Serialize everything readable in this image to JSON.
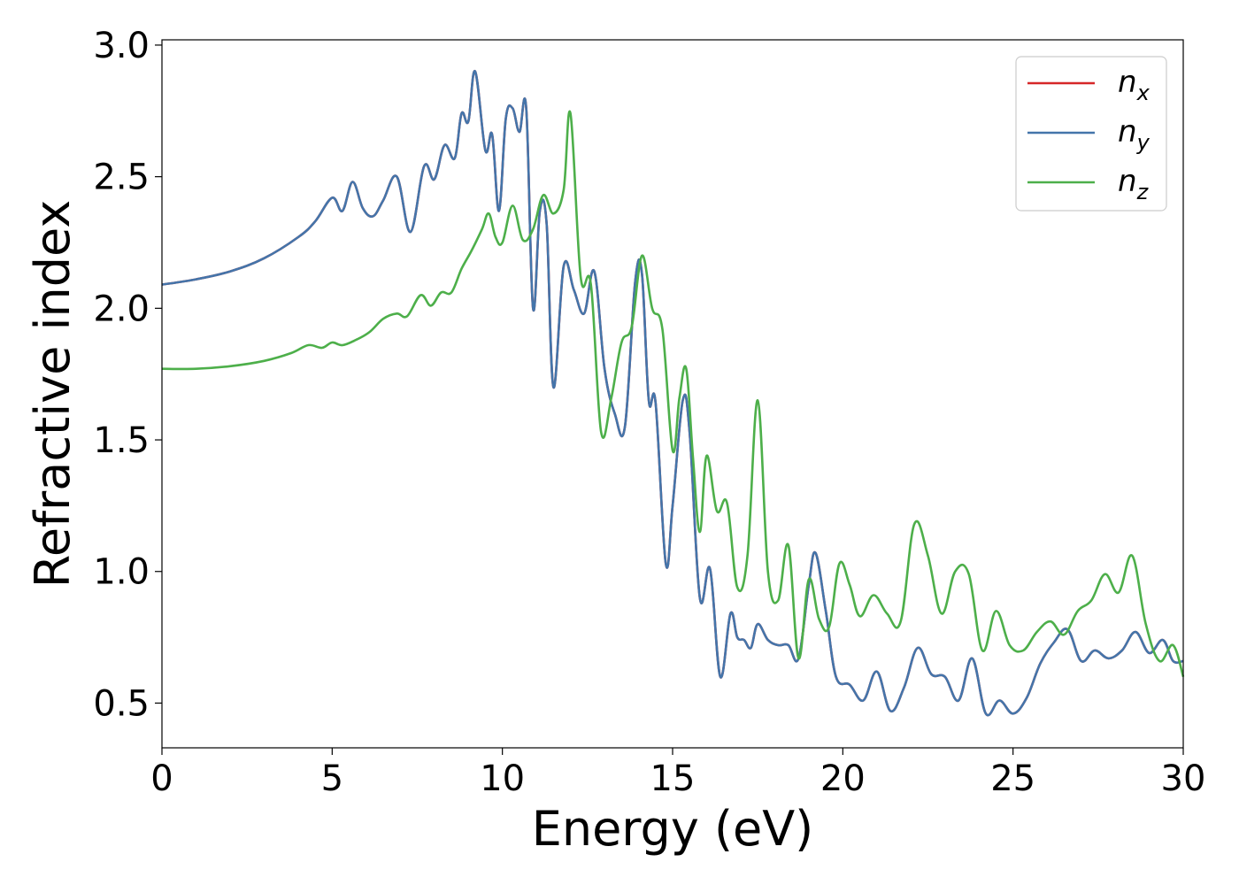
{
  "chart_data": {
    "type": "line",
    "xlabel": "Energy (eV)",
    "ylabel": "Refractive index",
    "xlim": [
      0,
      30
    ],
    "ylim": [
      0.33,
      3.02
    ],
    "xticks": [
      0,
      5,
      10,
      15,
      20,
      25,
      30
    ],
    "xtick_labels": [
      "0",
      "5",
      "10",
      "15",
      "20",
      "25",
      "30"
    ],
    "yticks": [
      0.5,
      1.0,
      1.5,
      2.0,
      2.5,
      3.0
    ],
    "ytick_labels": [
      "0.5",
      "1.0",
      "1.5",
      "2.0",
      "2.5",
      "3.0"
    ],
    "grid": false,
    "legend": "top-right",
    "series": [
      {
        "name": "n",
        "subscript": "x",
        "color": "#d62728",
        "x": [
          0,
          1,
          2,
          3,
          4,
          4.5,
          5,
          5.3,
          5.6,
          5.9,
          6.2,
          6.5,
          6.9,
          7.3,
          7.7,
          8.0,
          8.3,
          8.6,
          8.8,
          9.0,
          9.2,
          9.5,
          9.7,
          9.9,
          10.1,
          10.3,
          10.5,
          10.7,
          10.9,
          11.1,
          11.3,
          11.5,
          11.8,
          12.1,
          12.4,
          12.7,
          13.0,
          13.3,
          13.6,
          13.9,
          14.1,
          14.3,
          14.5,
          14.8,
          15.0,
          15.3,
          15.5,
          15.8,
          16.1,
          16.4,
          16.7,
          16.9,
          17.1,
          17.3,
          17.5,
          17.8,
          18.1,
          18.4,
          18.7,
          19.0,
          19.2,
          19.5,
          19.8,
          20.2,
          20.6,
          21.0,
          21.4,
          21.8,
          22.2,
          22.6,
          23.0,
          23.4,
          23.8,
          24.2,
          24.6,
          25.0,
          25.4,
          25.8,
          26.2,
          26.6,
          27.0,
          27.4,
          27.8,
          28.2,
          28.6,
          29.0,
          29.4,
          29.7,
          30.0
        ],
        "values": [
          2.09,
          2.11,
          2.14,
          2.19,
          2.27,
          2.33,
          2.42,
          2.37,
          2.48,
          2.38,
          2.35,
          2.41,
          2.5,
          2.29,
          2.54,
          2.49,
          2.62,
          2.57,
          2.74,
          2.71,
          2.9,
          2.6,
          2.66,
          2.37,
          2.72,
          2.76,
          2.67,
          2.76,
          2.0,
          2.37,
          2.32,
          1.7,
          2.16,
          2.07,
          1.98,
          2.14,
          1.77,
          1.6,
          1.55,
          2.1,
          2.13,
          1.65,
          1.64,
          1.03,
          1.25,
          1.65,
          1.53,
          0.9,
          1.01,
          0.6,
          0.84,
          0.75,
          0.74,
          0.71,
          0.8,
          0.74,
          0.72,
          0.72,
          0.67,
          0.95,
          1.07,
          0.85,
          0.6,
          0.57,
          0.51,
          0.62,
          0.47,
          0.56,
          0.71,
          0.61,
          0.6,
          0.51,
          0.67,
          0.46,
          0.51,
          0.46,
          0.52,
          0.65,
          0.73,
          0.78,
          0.66,
          0.7,
          0.67,
          0.7,
          0.77,
          0.69,
          0.74,
          0.66,
          0.66
        ]
      },
      {
        "name": "n",
        "subscript": "y",
        "color": "#4475aa",
        "x": [
          0,
          1,
          2,
          3,
          4,
          4.5,
          5,
          5.3,
          5.6,
          5.9,
          6.2,
          6.5,
          6.9,
          7.3,
          7.7,
          8.0,
          8.3,
          8.6,
          8.8,
          9.0,
          9.2,
          9.5,
          9.7,
          9.9,
          10.1,
          10.3,
          10.5,
          10.7,
          10.9,
          11.1,
          11.3,
          11.5,
          11.8,
          12.1,
          12.4,
          12.7,
          13.0,
          13.3,
          13.6,
          13.9,
          14.1,
          14.3,
          14.5,
          14.8,
          15.0,
          15.3,
          15.5,
          15.8,
          16.1,
          16.4,
          16.7,
          16.9,
          17.1,
          17.3,
          17.5,
          17.8,
          18.1,
          18.4,
          18.7,
          19.0,
          19.2,
          19.5,
          19.8,
          20.2,
          20.6,
          21.0,
          21.4,
          21.8,
          22.2,
          22.6,
          23.0,
          23.4,
          23.8,
          24.2,
          24.6,
          25.0,
          25.4,
          25.8,
          26.2,
          26.6,
          27.0,
          27.4,
          27.8,
          28.2,
          28.6,
          29.0,
          29.4,
          29.7,
          30.0
        ],
        "values": [
          2.09,
          2.11,
          2.14,
          2.19,
          2.27,
          2.33,
          2.42,
          2.37,
          2.48,
          2.38,
          2.35,
          2.41,
          2.5,
          2.29,
          2.54,
          2.49,
          2.62,
          2.57,
          2.74,
          2.71,
          2.9,
          2.6,
          2.66,
          2.37,
          2.72,
          2.76,
          2.67,
          2.76,
          2.0,
          2.37,
          2.32,
          1.7,
          2.16,
          2.07,
          1.98,
          2.14,
          1.77,
          1.6,
          1.55,
          2.1,
          2.13,
          1.65,
          1.64,
          1.03,
          1.25,
          1.65,
          1.53,
          0.9,
          1.01,
          0.6,
          0.84,
          0.75,
          0.74,
          0.71,
          0.8,
          0.74,
          0.72,
          0.72,
          0.67,
          0.95,
          1.07,
          0.85,
          0.6,
          0.57,
          0.51,
          0.62,
          0.47,
          0.56,
          0.71,
          0.61,
          0.6,
          0.51,
          0.67,
          0.46,
          0.51,
          0.46,
          0.52,
          0.65,
          0.73,
          0.78,
          0.66,
          0.7,
          0.67,
          0.7,
          0.77,
          0.69,
          0.74,
          0.66,
          0.66
        ]
      },
      {
        "name": "n",
        "subscript": "z",
        "color": "#4daf4a",
        "x": [
          0,
          1,
          2,
          3,
          3.8,
          4.3,
          4.7,
          5.0,
          5.3,
          5.7,
          6.1,
          6.5,
          6.9,
          7.2,
          7.6,
          7.9,
          8.2,
          8.5,
          8.8,
          9.1,
          9.4,
          9.6,
          9.8,
          10.0,
          10.3,
          10.6,
          10.9,
          11.2,
          11.5,
          11.8,
          12.0,
          12.3,
          12.6,
          12.9,
          13.2,
          13.5,
          13.8,
          14.1,
          14.4,
          14.7,
          15.0,
          15.2,
          15.4,
          15.6,
          15.8,
          16.0,
          16.3,
          16.6,
          16.9,
          17.2,
          17.5,
          17.8,
          18.1,
          18.4,
          18.7,
          19.0,
          19.3,
          19.6,
          19.9,
          20.2,
          20.5,
          20.9,
          21.3,
          21.7,
          22.1,
          22.5,
          22.9,
          23.3,
          23.7,
          24.1,
          24.5,
          24.9,
          25.3,
          25.7,
          26.1,
          26.5,
          26.9,
          27.3,
          27.7,
          28.1,
          28.5,
          28.9,
          29.3,
          29.7,
          30.0
        ],
        "values": [
          1.77,
          1.77,
          1.78,
          1.8,
          1.83,
          1.86,
          1.85,
          1.87,
          1.86,
          1.88,
          1.91,
          1.96,
          1.98,
          1.97,
          2.05,
          2.01,
          2.06,
          2.06,
          2.15,
          2.22,
          2.3,
          2.36,
          2.27,
          2.25,
          2.39,
          2.26,
          2.3,
          2.43,
          2.36,
          2.45,
          2.74,
          2.12,
          2.09,
          1.53,
          1.66,
          1.87,
          1.93,
          2.2,
          2.0,
          1.92,
          1.46,
          1.66,
          1.77,
          1.43,
          1.15,
          1.44,
          1.23,
          1.26,
          0.94,
          1.06,
          1.65,
          1.0,
          0.89,
          1.1,
          0.67,
          0.97,
          0.82,
          0.79,
          1.03,
          0.95,
          0.83,
          0.91,
          0.84,
          0.81,
          1.18,
          1.06,
          0.84,
          1.0,
          0.99,
          0.7,
          0.85,
          0.72,
          0.7,
          0.77,
          0.81,
          0.76,
          0.85,
          0.89,
          0.99,
          0.92,
          1.06,
          0.8,
          0.66,
          0.72,
          0.6
        ]
      }
    ]
  }
}
